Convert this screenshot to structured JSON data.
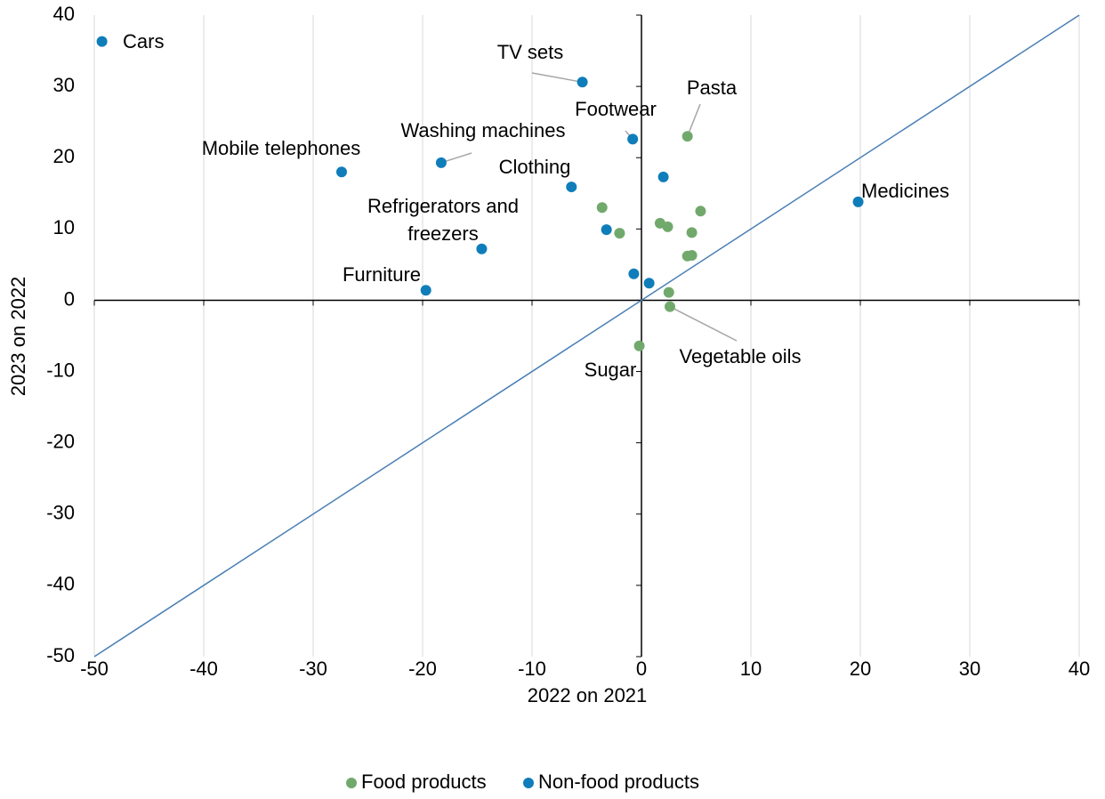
{
  "chart_data": {
    "type": "scatter",
    "xlabel": "2022 on 2021",
    "ylabel": "2023 on 2022",
    "xlim": [
      -50,
      40
    ],
    "ylim": [
      -50,
      40
    ],
    "xticks": [
      -50,
      -40,
      -30,
      -20,
      -10,
      0,
      10,
      20,
      30,
      40
    ],
    "yticks": [
      -50,
      -40,
      -30,
      -20,
      -10,
      0,
      10,
      20,
      30,
      40
    ],
    "grid": true,
    "legend": "bottom",
    "series": [
      {
        "name": "Food products",
        "color": "#71a96c",
        "x": [
          4.2,
          -3.6,
          -2.0,
          1.7,
          2.4,
          5.4,
          4.6,
          4.2,
          4.6,
          2.5,
          2.6,
          -0.2
        ],
        "values": [
          23.0,
          13.0,
          9.4,
          10.8,
          10.3,
          12.5,
          9.5,
          6.2,
          6.3,
          1.1,
          -0.9,
          -6.4
        ],
        "labels": [
          "Pasta",
          null,
          null,
          null,
          null,
          null,
          null,
          null,
          null,
          null,
          "Vegetable oils",
          "Sugar"
        ]
      },
      {
        "name": "Non-food products",
        "color": "#0f7dba",
        "x": [
          -49.3,
          -5.4,
          -0.8,
          2.0,
          -27.4,
          -18.3,
          -6.4,
          -3.2,
          -14.6,
          -0.7,
          0.7,
          -19.7,
          19.8
        ],
        "values": [
          36.3,
          30.6,
          22.6,
          17.3,
          18.0,
          19.3,
          15.9,
          9.9,
          7.2,
          3.7,
          2.4,
          1.4,
          13.8
        ],
        "labels": [
          "Cars",
          "TV sets",
          "Footwear",
          null,
          "Mobile telephones",
          "Washing machines",
          "Clothing",
          null,
          "Refrigerators and freezers",
          null,
          null,
          "Furniture",
          "Medicines"
        ]
      }
    ]
  }
}
